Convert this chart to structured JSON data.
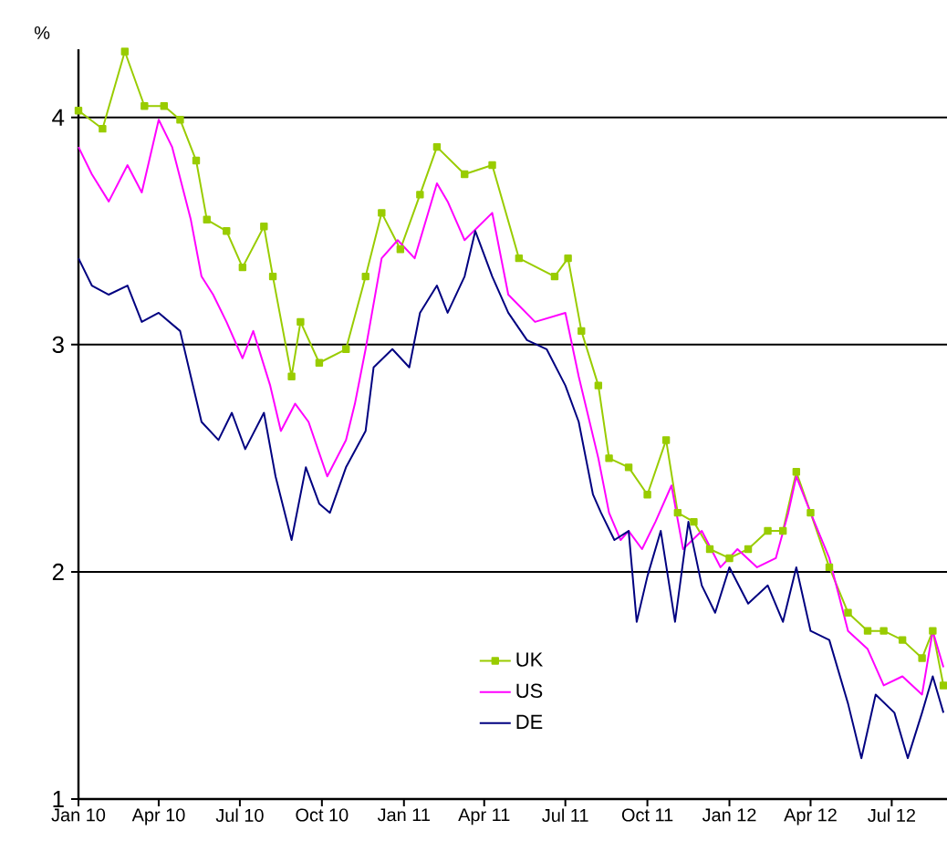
{
  "chart_data": {
    "type": "line",
    "ylabel": "%",
    "xlim": [
      "2010-01-01",
      "2012-09-01"
    ],
    "ylim": [
      1,
      4.3
    ],
    "xticks": [
      {
        "value": "2010-01-01",
        "label": "Jan 10"
      },
      {
        "value": "2010-04-01",
        "label": "Apr 10"
      },
      {
        "value": "2010-07-01",
        "label": "Jul 10"
      },
      {
        "value": "2010-10-01",
        "label": "Oct 10"
      },
      {
        "value": "2011-01-01",
        "label": "Jan 11"
      },
      {
        "value": "2011-04-01",
        "label": "Apr 11"
      },
      {
        "value": "2011-07-01",
        "label": "Jul 11"
      },
      {
        "value": "2011-10-01",
        "label": "Oct 11"
      },
      {
        "value": "2012-01-01",
        "label": "Jan 12"
      },
      {
        "value": "2012-04-01",
        "label": "Apr 12"
      },
      {
        "value": "2012-07-01",
        "label": "Jul 12"
      }
    ],
    "yticks": [
      1,
      2,
      3,
      4
    ],
    "grid": "y",
    "legend": "bottom",
    "series": [
      {
        "name": "UK",
        "color": "#99cc00",
        "marker": "square",
        "x": [
          "2010-01-01",
          "2010-01-28",
          "2010-02-22",
          "2010-03-16",
          "2010-04-07",
          "2010-04-25",
          "2010-05-13",
          "2010-05-25",
          "2010-06-16",
          "2010-07-04",
          "2010-07-28",
          "2010-08-07",
          "2010-08-28",
          "2010-09-07",
          "2010-09-28",
          "2010-10-28",
          "2010-11-19",
          "2010-12-07",
          "2010-12-28",
          "2011-01-19",
          "2011-02-07",
          "2011-03-10",
          "2011-04-10",
          "2011-05-10",
          "2011-06-19",
          "2011-07-04",
          "2011-07-19",
          "2011-08-07",
          "2011-08-19",
          "2011-09-10",
          "2011-10-01",
          "2011-10-22",
          "2011-11-04",
          "2011-11-22",
          "2011-12-10",
          "2012-01-01",
          "2012-01-22",
          "2012-02-13",
          "2012-03-01",
          "2012-03-16",
          "2012-04-01",
          "2012-04-22",
          "2012-05-13",
          "2012-06-04",
          "2012-06-22",
          "2012-07-13",
          "2012-08-04",
          "2012-08-16",
          "2012-08-28"
        ],
        "values": [
          4.03,
          3.95,
          4.29,
          4.05,
          4.05,
          3.99,
          3.81,
          3.55,
          3.5,
          3.34,
          3.52,
          3.3,
          2.86,
          3.1,
          2.92,
          2.98,
          3.3,
          3.58,
          3.42,
          3.66,
          3.87,
          3.75,
          3.79,
          3.38,
          3.3,
          3.38,
          3.06,
          2.82,
          2.5,
          2.46,
          2.34,
          2.58,
          2.26,
          2.22,
          2.1,
          2.06,
          2.1,
          2.18,
          2.18,
          2.44,
          2.26,
          2.02,
          1.82,
          1.74,
          1.74,
          1.7,
          1.62,
          1.74,
          1.5
        ]
      },
      {
        "name": "US",
        "color": "#ff00ff",
        "marker": "none",
        "x": [
          "2010-01-01",
          "2010-01-16",
          "2010-02-04",
          "2010-02-25",
          "2010-03-13",
          "2010-04-01",
          "2010-04-16",
          "2010-05-07",
          "2010-05-19",
          "2010-06-01",
          "2010-06-16",
          "2010-07-04",
          "2010-07-16",
          "2010-08-04",
          "2010-08-16",
          "2010-09-01",
          "2010-09-16",
          "2010-10-07",
          "2010-10-28",
          "2010-11-07",
          "2010-11-19",
          "2010-12-07",
          "2010-12-25",
          "2011-01-13",
          "2011-02-07",
          "2011-02-19",
          "2011-03-10",
          "2011-04-10",
          "2011-04-28",
          "2011-05-28",
          "2011-07-01",
          "2011-07-16",
          "2011-08-07",
          "2011-08-19",
          "2011-09-01",
          "2011-09-10",
          "2011-09-25",
          "2011-10-10",
          "2011-10-28",
          "2011-11-10",
          "2011-12-01",
          "2011-12-22",
          "2012-01-10",
          "2012-02-01",
          "2012-02-22",
          "2012-03-07",
          "2012-03-16",
          "2012-04-01",
          "2012-04-22",
          "2012-05-13",
          "2012-06-04",
          "2012-06-22",
          "2012-07-13",
          "2012-08-04",
          "2012-08-16",
          "2012-08-28"
        ],
        "values": [
          3.87,
          3.75,
          3.63,
          3.79,
          3.67,
          3.99,
          3.87,
          3.55,
          3.3,
          3.22,
          3.1,
          2.94,
          3.06,
          2.82,
          2.62,
          2.74,
          2.66,
          2.42,
          2.58,
          2.74,
          2.98,
          3.38,
          3.46,
          3.38,
          3.71,
          3.63,
          3.46,
          3.58,
          3.22,
          3.1,
          3.14,
          2.86,
          2.5,
          2.26,
          2.14,
          2.18,
          2.1,
          2.22,
          2.38,
          2.1,
          2.18,
          2.02,
          2.1,
          2.02,
          2.06,
          2.26,
          2.42,
          2.26,
          2.06,
          1.74,
          1.66,
          1.5,
          1.54,
          1.46,
          1.74,
          1.58
        ]
      },
      {
        "name": "DE",
        "color": "#000080",
        "marker": "none",
        "x": [
          "2010-01-01",
          "2010-01-16",
          "2010-02-04",
          "2010-02-25",
          "2010-03-13",
          "2010-04-01",
          "2010-04-25",
          "2010-05-07",
          "2010-05-19",
          "2010-06-07",
          "2010-06-22",
          "2010-07-07",
          "2010-07-28",
          "2010-08-10",
          "2010-08-28",
          "2010-09-13",
          "2010-09-28",
          "2010-10-10",
          "2010-10-28",
          "2010-11-19",
          "2010-11-28",
          "2010-12-19",
          "2011-01-07",
          "2011-01-19",
          "2011-02-07",
          "2011-02-19",
          "2011-03-10",
          "2011-03-22",
          "2011-04-10",
          "2011-04-28",
          "2011-05-19",
          "2011-06-10",
          "2011-07-01",
          "2011-07-16",
          "2011-08-01",
          "2011-08-10",
          "2011-08-25",
          "2011-09-10",
          "2011-09-19",
          "2011-10-01",
          "2011-10-16",
          "2011-11-01",
          "2011-11-16",
          "2011-12-01",
          "2011-12-16",
          "2012-01-01",
          "2012-01-22",
          "2012-02-13",
          "2012-03-01",
          "2012-03-16",
          "2012-04-01",
          "2012-04-22",
          "2012-05-13",
          "2012-05-28",
          "2012-06-13",
          "2012-07-04",
          "2012-07-19",
          "2012-08-04",
          "2012-08-16",
          "2012-08-28"
        ],
        "values": [
          3.38,
          3.26,
          3.22,
          3.26,
          3.1,
          3.14,
          3.06,
          2.86,
          2.66,
          2.58,
          2.7,
          2.54,
          2.7,
          2.42,
          2.14,
          2.46,
          2.3,
          2.26,
          2.46,
          2.62,
          2.9,
          2.98,
          2.9,
          3.14,
          3.26,
          3.14,
          3.3,
          3.5,
          3.3,
          3.14,
          3.02,
          2.98,
          2.82,
          2.66,
          2.34,
          2.26,
          2.14,
          2.18,
          1.78,
          1.98,
          2.18,
          1.78,
          2.22,
          1.94,
          1.82,
          2.02,
          1.86,
          1.94,
          1.78,
          2.02,
          1.74,
          1.7,
          1.42,
          1.18,
          1.46,
          1.38,
          1.18,
          1.38,
          1.54,
          1.38
        ]
      }
    ]
  }
}
